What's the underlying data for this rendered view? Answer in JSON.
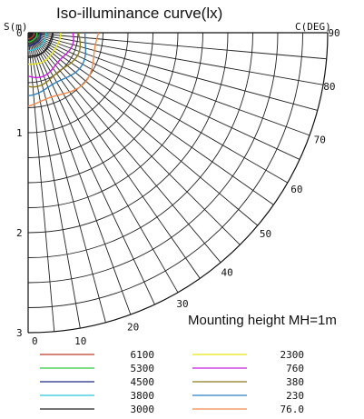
{
  "chart_data": {
    "type": "polar_isolux",
    "title": "Iso-illuminance curve(lx)",
    "radial_axis": {
      "label": "S(m)",
      "range": [
        0,
        3
      ],
      "ticks": [
        "0",
        "1",
        "2",
        "3"
      ],
      "minor_step": 0.25
    },
    "angular_axis": {
      "label": "C(DEG)",
      "range": [
        0,
        90
      ],
      "step": 5,
      "tick_labels": [
        "10",
        "20",
        "30",
        "40",
        "50",
        "60",
        "70",
        "80",
        "90"
      ],
      "outer_zero_label": "0"
    },
    "annotation": "Mounting height MH=1m",
    "series": [
      {
        "name": "6100",
        "color": "#c0392b",
        "radius": 0.06
      },
      {
        "name": "5300",
        "color": "#2ecc40",
        "radius": 0.09
      },
      {
        "name": "4500",
        "color": "#1f2a8a",
        "radius": 0.13
      },
      {
        "name": "3800",
        "color": "#29c8d8",
        "radius": 0.18
      },
      {
        "name": "3000",
        "color": "#222222",
        "radius": 0.24
      },
      {
        "name": "2300",
        "color": "#e6e619",
        "radius": 0.32
      },
      {
        "name": "760",
        "color": "#c81ee0",
        "radius": 0.44
      },
      {
        "name": "380",
        "color": "#8a7a1a",
        "radius": 0.52
      },
      {
        "name": "230",
        "color": "#2f7fbf",
        "radius": 0.6
      },
      {
        "name": "76.0",
        "color": "#f08a4b",
        "radius": 0.72
      }
    ],
    "grid": true
  }
}
